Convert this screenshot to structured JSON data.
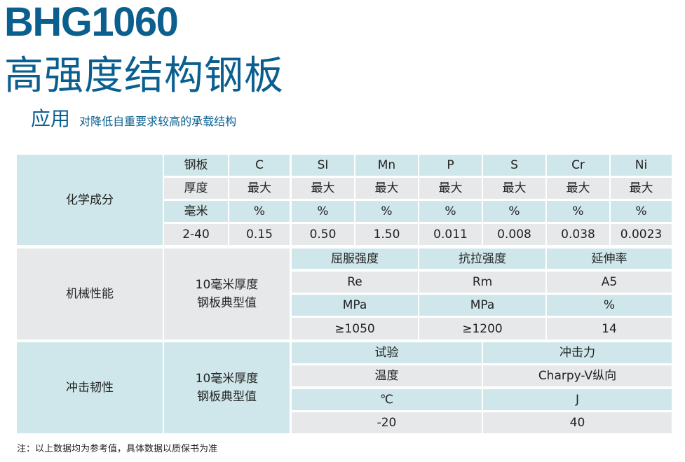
{
  "header": {
    "model": "BHG1060",
    "product_name": "高强度结构钢板",
    "application_label": "应用",
    "application_desc": "对降低自重要求较高的承载结构"
  },
  "chemical": {
    "section_title": "化学成分",
    "rows": [
      [
        "钢板",
        "C",
        "SI",
        "Mn",
        "P",
        "S",
        "Cr",
        "Ni"
      ],
      [
        "厚度",
        "最大",
        "最大",
        "最大",
        "最大",
        "最大",
        "最大",
        "最大"
      ],
      [
        "毫米",
        "%",
        "%",
        "%",
        "%",
        "%",
        "%",
        "%"
      ],
      [
        "2-40",
        "0.15",
        "0.50",
        "1.50",
        "0.011",
        "0.008",
        "0.038",
        "0.0023"
      ]
    ]
  },
  "mechanical": {
    "section_title": "机械性能",
    "subtitle": "10毫米厚度\n钢板典型值",
    "rows": [
      [
        "屈服强度",
        "抗拉强度",
        "延伸率"
      ],
      [
        "Re",
        "Rm",
        "A5"
      ],
      [
        "MPa",
        "MPa",
        "%"
      ],
      [
        "≥1050",
        "≥1200",
        "14"
      ]
    ]
  },
  "impact": {
    "section_title": "冲击韧性",
    "subtitle": "10毫米厚度\n钢板典型值",
    "rows": [
      [
        "试验",
        "冲击力"
      ],
      [
        "温度",
        "Charpy-V纵向"
      ],
      [
        "℃",
        "J"
      ],
      [
        "-20",
        "40"
      ]
    ]
  },
  "footnote": "注：以上数据均为参考值，具体数据以质保书为准",
  "colors": {
    "brand_blue": "#0a5f8f",
    "cell_blue": "#cfe7ea",
    "cell_grey": "#e6e8ea"
  }
}
